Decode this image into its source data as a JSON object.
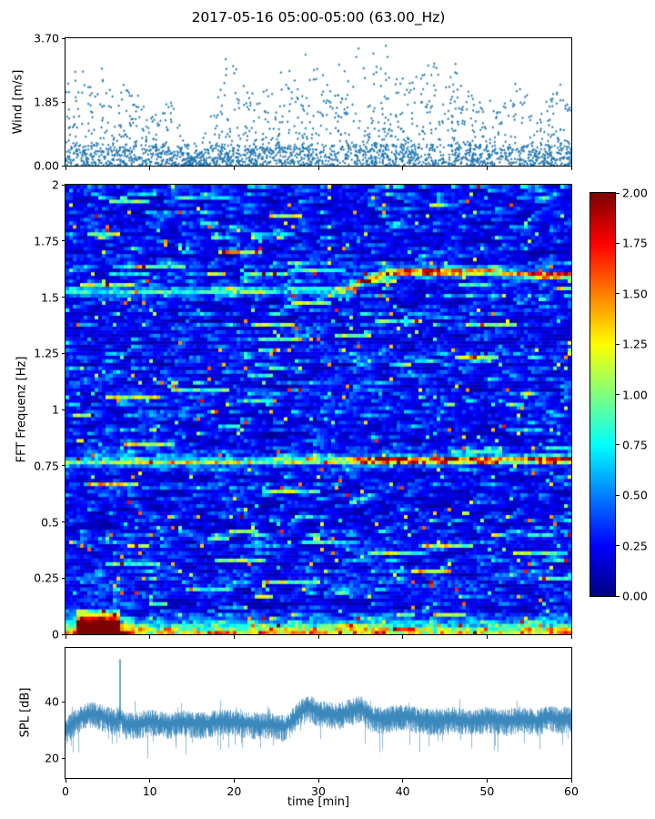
{
  "figure": {
    "title": "2017-05-16 05:00-05:00 (63.00_Hz)"
  },
  "chart_data": [
    {
      "type": "scatter",
      "name": "wind-speed",
      "ylabel": "Wind [m/s]",
      "ylim": [
        0,
        3.7
      ],
      "yticks": [
        0,
        1.85,
        3.7
      ],
      "ytick_labels": [
        "0.00",
        "1.85",
        "3.70"
      ],
      "xlim": [
        0,
        60
      ],
      "marker_color": "#1f77b4",
      "n_points": 2400,
      "gust_envelope": [
        [
          0,
          2.6
        ],
        [
          2,
          2.2
        ],
        [
          4,
          2.9
        ],
        [
          6,
          2.0
        ],
        [
          8,
          2.6
        ],
        [
          10,
          1.7
        ],
        [
          12,
          2.2
        ],
        [
          14,
          0.9
        ],
        [
          15,
          0.5
        ],
        [
          17,
          1.2
        ],
        [
          18,
          2.0
        ],
        [
          20,
          3.4
        ],
        [
          22,
          1.9
        ],
        [
          24,
          2.3
        ],
        [
          26,
          2.5
        ],
        [
          28,
          2.7
        ],
        [
          30,
          3.1
        ],
        [
          32,
          2.3
        ],
        [
          34,
          3.5
        ],
        [
          36,
          2.6
        ],
        [
          38,
          3.2
        ],
        [
          40,
          2.5
        ],
        [
          42,
          2.7
        ],
        [
          44,
          3.0
        ],
        [
          46,
          2.6
        ],
        [
          48,
          2.3
        ],
        [
          50,
          1.7
        ],
        [
          52,
          2.2
        ],
        [
          54,
          2.5
        ],
        [
          56,
          1.5
        ],
        [
          58,
          2.6
        ],
        [
          60,
          2.3
        ]
      ]
    },
    {
      "type": "heatmap",
      "name": "spectrogram",
      "ylabel": "FFT Frequenz [Hz]",
      "ylim": [
        0,
        2
      ],
      "yticks": [
        0,
        0.25,
        0.5,
        0.75,
        1,
        1.25,
        1.5,
        1.75,
        2
      ],
      "ytick_labels": [
        "0",
        "0.25",
        "0.5",
        "0.75",
        "1",
        "1.25",
        "1.5",
        "1.75",
        "2"
      ],
      "xlim": [
        0,
        60
      ],
      "colormap": "jet",
      "clim": [
        0,
        2
      ],
      "colorbar_ticks": [
        0,
        0.25,
        0.5,
        0.75,
        1,
        1.25,
        1.5,
        1.75,
        2
      ],
      "colorbar_tick_labels": [
        "0.00",
        "0.25",
        "0.50",
        "0.75",
        "1.00",
        "1.25",
        "1.50",
        "1.75",
        "2.00"
      ],
      "background_noise_mean": 0.27,
      "bands": [
        {
          "name": "tonal-0.77Hz",
          "sigma": 0.012,
          "freq_points": [
            [
              0,
              0.765
            ],
            [
              30,
              0.772
            ],
            [
              60,
              0.78
            ]
          ],
          "amp_points": [
            [
              0,
              0.9
            ],
            [
              5,
              0.7
            ],
            [
              10,
              1.0
            ],
            [
              15,
              0.8
            ],
            [
              20,
              1.0
            ],
            [
              25,
              0.7
            ],
            [
              30,
              0.9
            ],
            [
              34,
              1.3
            ],
            [
              36,
              1.8
            ],
            [
              40,
              1.9
            ],
            [
              44,
              1.7
            ],
            [
              48,
              1.9
            ],
            [
              50,
              1.4
            ],
            [
              53,
              1.1
            ],
            [
              56,
              1.6
            ],
            [
              58,
              1.9
            ],
            [
              60,
              1.6
            ]
          ]
        },
        {
          "name": "tonal-1.6Hz",
          "sigma": 0.012,
          "freq_points": [
            [
              0,
              1.525
            ],
            [
              33,
              1.53
            ],
            [
              37,
              1.6
            ],
            [
              40,
              1.615
            ],
            [
              50,
              1.615
            ],
            [
              55,
              1.6
            ],
            [
              60,
              1.595
            ]
          ],
          "amp_points": [
            [
              0,
              0.6
            ],
            [
              10,
              0.8
            ],
            [
              15,
              0.6
            ],
            [
              20,
              0.85
            ],
            [
              25,
              0.6
            ],
            [
              30,
              0.7
            ],
            [
              35,
              1.0
            ],
            [
              38,
              1.6
            ],
            [
              42,
              1.8
            ],
            [
              46,
              1.6
            ],
            [
              50,
              1.3
            ],
            [
              54,
              0.9
            ],
            [
              57,
              1.7
            ],
            [
              60,
              1.2
            ]
          ]
        }
      ],
      "low_band": {
        "name": "low-frequency-broadband",
        "width": 0.05,
        "amp_points": [
          [
            0,
            1.2
          ],
          [
            1.5,
            1.6
          ],
          [
            2,
            2.2
          ],
          [
            6,
            2.2
          ],
          [
            7,
            1.4
          ],
          [
            10,
            1.1
          ],
          [
            15,
            1.0
          ],
          [
            20,
            1.3
          ],
          [
            22,
            1.1
          ],
          [
            25,
            1.0
          ],
          [
            28,
            1.4
          ],
          [
            30,
            1.2
          ],
          [
            35,
            1.3
          ],
          [
            38,
            1.5
          ],
          [
            40,
            1.2
          ],
          [
            45,
            1.1
          ],
          [
            50,
            1.2
          ],
          [
            55,
            1.3
          ],
          [
            60,
            1.4
          ]
        ]
      },
      "hotspot": {
        "t": [
          1.5,
          6.5
        ],
        "f": [
          0,
          0.12
        ],
        "value": 2.0
      },
      "random_streaks": {
        "count": 70,
        "amp": [
          0.4,
          1.1
        ]
      }
    },
    {
      "type": "line",
      "name": "spl",
      "ylabel": "SPL [dB]",
      "xlabel": "time [min]",
      "ylim": [
        13,
        59
      ],
      "yticks": [
        20,
        40
      ],
      "ytick_labels": [
        "20",
        "40"
      ],
      "xticks": [
        0,
        10,
        20,
        30,
        40,
        50,
        60
      ],
      "xtick_labels": [
        "0",
        "10",
        "20",
        "30",
        "40",
        "50",
        "60"
      ],
      "line_color": "#1f77b4",
      "noise_amplitude": 4,
      "spike": {
        "t": 6.4,
        "peak": 55
      },
      "base_points": [
        [
          0,
          30
        ],
        [
          1,
          33
        ],
        [
          2,
          35
        ],
        [
          3,
          36
        ],
        [
          4,
          35
        ],
        [
          5,
          34
        ],
        [
          6,
          33
        ],
        [
          6.4,
          35
        ],
        [
          7,
          32
        ],
        [
          8,
          32
        ],
        [
          10,
          33
        ],
        [
          12,
          32
        ],
        [
          14,
          33
        ],
        [
          16,
          32
        ],
        [
          18,
          33
        ],
        [
          20,
          33
        ],
        [
          22,
          32
        ],
        [
          24,
          32
        ],
        [
          26,
          31
        ],
        [
          27,
          34
        ],
        [
          28,
          37
        ],
        [
          29,
          38
        ],
        [
          30,
          36
        ],
        [
          31,
          36
        ],
        [
          32,
          35
        ],
        [
          33,
          36
        ],
        [
          34,
          37
        ],
        [
          35,
          38
        ],
        [
          36,
          35
        ],
        [
          37,
          34
        ],
        [
          38,
          34
        ],
        [
          40,
          35
        ],
        [
          42,
          34
        ],
        [
          44,
          33
        ],
        [
          46,
          34
        ],
        [
          48,
          33
        ],
        [
          50,
          34
        ],
        [
          52,
          33
        ],
        [
          54,
          34
        ],
        [
          56,
          33
        ],
        [
          57,
          35
        ],
        [
          58,
          34
        ],
        [
          60,
          34
        ]
      ]
    }
  ]
}
